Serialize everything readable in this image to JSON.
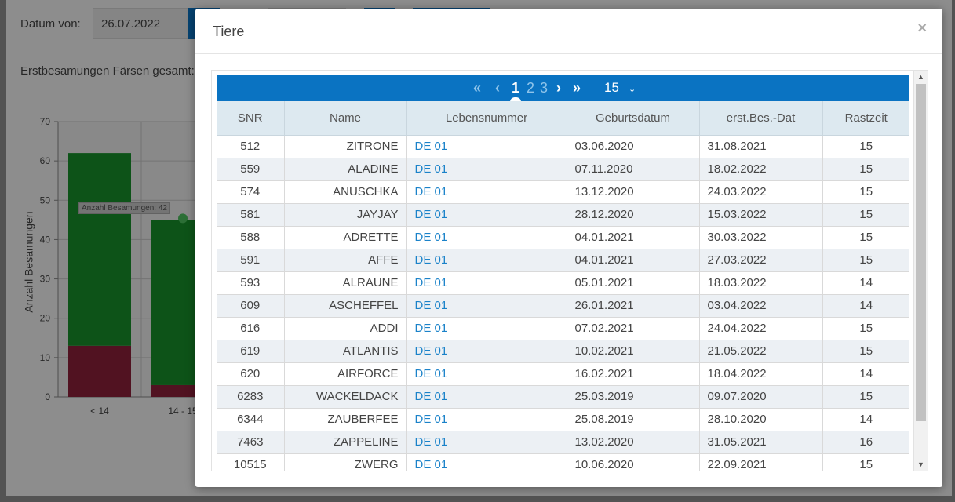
{
  "background": {
    "date_label": "Datum von:",
    "date_value": "26.07.2022",
    "summary_label": "Erstbesamungen Färsen gesamt:",
    "chart_tooltip": "Anzahl Besamungen: 42",
    "accent_color": "#0a73c2"
  },
  "chart_data": {
    "type": "bar",
    "ylabel": "Anzahl Besamungen",
    "ylim": [
      0,
      70
    ],
    "yticks": [
      "0",
      "10",
      "20",
      "30",
      "40",
      "50",
      "60",
      "70"
    ],
    "categories": [
      "< 14",
      "14 - 15"
    ],
    "series": [
      {
        "values": [
          13,
          3
        ],
        "color": "#8c1f3a"
      },
      {
        "values": [
          49,
          42
        ],
        "color": "#17902a"
      }
    ],
    "tooltip": "Anzahl Besamungen: 42"
  },
  "modal": {
    "title": "Tiere",
    "close_icon": "close-icon",
    "pager": {
      "first": "«",
      "prev": "‹",
      "pages": [
        "1",
        "2",
        "3"
      ],
      "current": "1",
      "next": "›",
      "last": "»",
      "page_size": "15",
      "caret": "⌄"
    },
    "columns": [
      "SNR",
      "Name",
      "Lebensnummer",
      "Geburtsdatum",
      "erst.Bes.-Dat",
      "Rastzeit"
    ],
    "rows": [
      [
        "512",
        "ZITRONE",
        "DE 01",
        "03.06.2020",
        "31.08.2021",
        "15"
      ],
      [
        "559",
        "ALADINE",
        "DE 01",
        "07.11.2020",
        "18.02.2022",
        "15"
      ],
      [
        "574",
        "ANUSCHKA",
        "DE 01",
        "13.12.2020",
        "24.03.2022",
        "15"
      ],
      [
        "581",
        "JAYJAY",
        "DE 01",
        "28.12.2020",
        "15.03.2022",
        "15"
      ],
      [
        "588",
        "ADRETTE",
        "DE 01",
        "04.01.2021",
        "30.03.2022",
        "15"
      ],
      [
        "591",
        "AFFE",
        "DE 01",
        "04.01.2021",
        "27.03.2022",
        "15"
      ],
      [
        "593",
        "ALRAUNE",
        "DE 01",
        "05.01.2021",
        "18.03.2022",
        "14"
      ],
      [
        "609",
        "ASCHEFFEL",
        "DE 01",
        "26.01.2021",
        "03.04.2022",
        "14"
      ],
      [
        "616",
        "ADDI",
        "DE 01",
        "07.02.2021",
        "24.04.2022",
        "15"
      ],
      [
        "619",
        "ATLANTIS",
        "DE 01",
        "10.02.2021",
        "21.05.2022",
        "15"
      ],
      [
        "620",
        "AIRFORCE",
        "DE 01",
        "16.02.2021",
        "18.04.2022",
        "14"
      ],
      [
        "6283",
        "WACKELDACK",
        "DE 01",
        "25.03.2019",
        "09.07.2020",
        "15"
      ],
      [
        "6344",
        "ZAUBERFEE",
        "DE 01",
        "25.08.2019",
        "28.10.2020",
        "14"
      ],
      [
        "7463",
        "ZAPPELINE",
        "DE 01",
        "13.02.2020",
        "31.05.2021",
        "16"
      ],
      [
        "10515",
        "ZWERG",
        "DE 01",
        "10.06.2020",
        "22.09.2021",
        "15"
      ]
    ]
  }
}
